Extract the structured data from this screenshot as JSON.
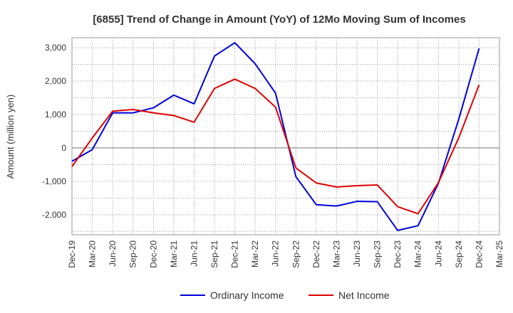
{
  "chart_data": {
    "type": "line",
    "title": "[6855]  Trend of Change in Amount (YoY) of 12Mo Moving Sum of Incomes",
    "ylabel": "Amount (million yen)",
    "xlabel": "",
    "x_tick_labels": [
      "Dec-19",
      "Mar-20",
      "Jun-20",
      "Sep-20",
      "Dec-20",
      "Mar-21",
      "Jun-21",
      "Sep-21",
      "Dec-21",
      "Mar-22",
      "Jun-22",
      "Sep-22",
      "Dec-22",
      "Mar-23",
      "Jun-23",
      "Sep-23",
      "Dec-23",
      "Mar-24",
      "Jun-24",
      "Sep-24",
      "Dec-24",
      "Mar-25"
    ],
    "y_ticks": [
      -2000,
      -1000,
      0,
      1000,
      2000,
      3000
    ],
    "y_tick_labels": [
      "-2,000",
      "-1,000",
      "0",
      "1,000",
      "2,000",
      "3,000"
    ],
    "ylim": [
      -2600,
      3300
    ],
    "grid": true,
    "legend_position": "bottom",
    "series": [
      {
        "name": "Ordinary Income",
        "color": "#0000dd",
        "values": [
          -400,
          -50,
          1050,
          1050,
          1200,
          1580,
          1320,
          2750,
          3150,
          2520,
          1640,
          -860,
          -1700,
          -1740,
          -1600,
          -1610,
          -2470,
          -2330,
          -1060,
          860,
          2980,
          null
        ]
      },
      {
        "name": "Net Income",
        "color": "#dd0000",
        "values": [
          -560,
          300,
          1100,
          1150,
          1050,
          970,
          770,
          1780,
          2060,
          1780,
          1220,
          -600,
          -1050,
          -1170,
          -1130,
          -1110,
          -1760,
          -1970,
          -1040,
          300,
          1890,
          null
        ]
      }
    ]
  }
}
